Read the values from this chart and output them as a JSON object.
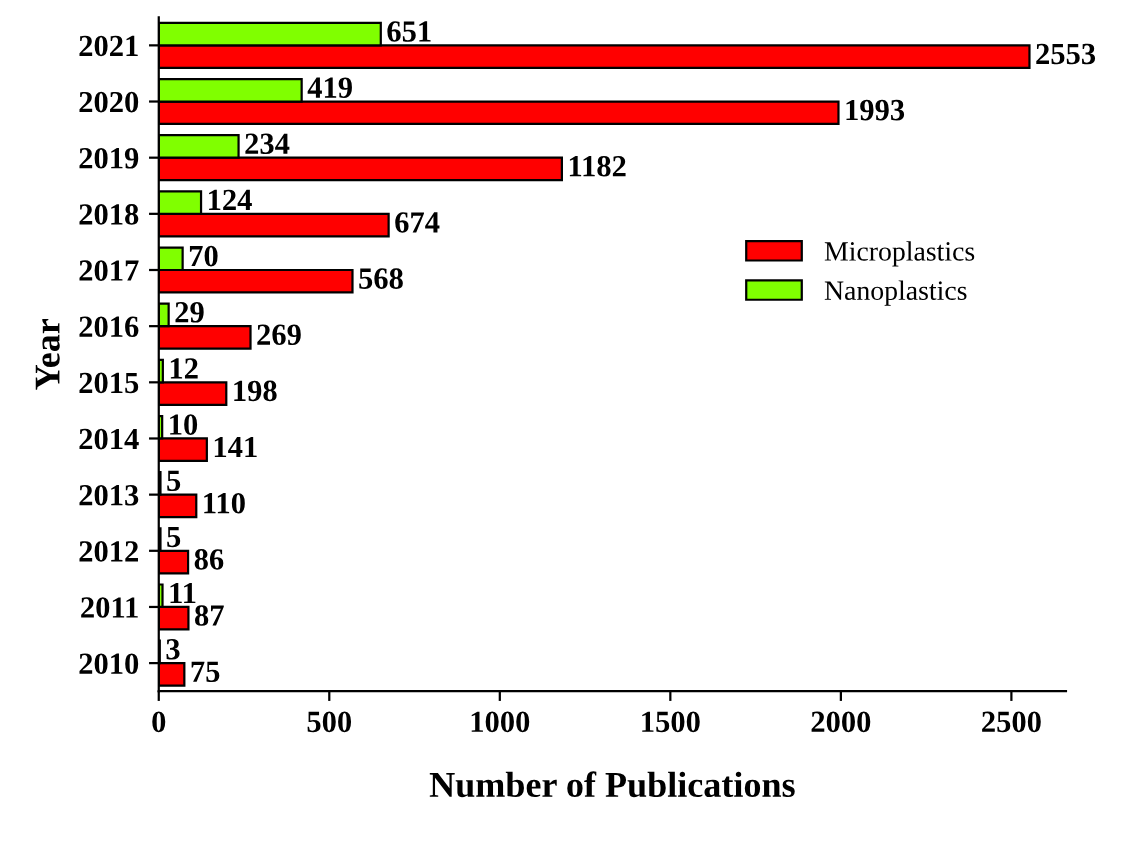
{
  "chart_data": {
    "type": "bar",
    "orientation": "horizontal",
    "xlabel": "Number of Publications",
    "ylabel": "Year",
    "categories": [
      "2021",
      "2020",
      "2019",
      "2018",
      "2017",
      "2016",
      "2015",
      "2014",
      "2013",
      "2012",
      "2011",
      "2010"
    ],
    "series": [
      {
        "name": "Microplastics",
        "color": "#ff0000",
        "values": [
          2553,
          1993,
          1182,
          674,
          568,
          269,
          198,
          141,
          110,
          86,
          87,
          75
        ]
      },
      {
        "name": "Nanoplastics",
        "color": "#80ff00",
        "values": [
          651,
          419,
          234,
          124,
          70,
          29,
          12,
          10,
          5,
          5,
          11,
          3
        ]
      }
    ],
    "xlim": [
      0,
      2660
    ],
    "xticks": [
      0,
      500,
      1000,
      1500,
      2000,
      2500
    ],
    "grid": false,
    "legend": "right",
    "data_labels": true
  }
}
